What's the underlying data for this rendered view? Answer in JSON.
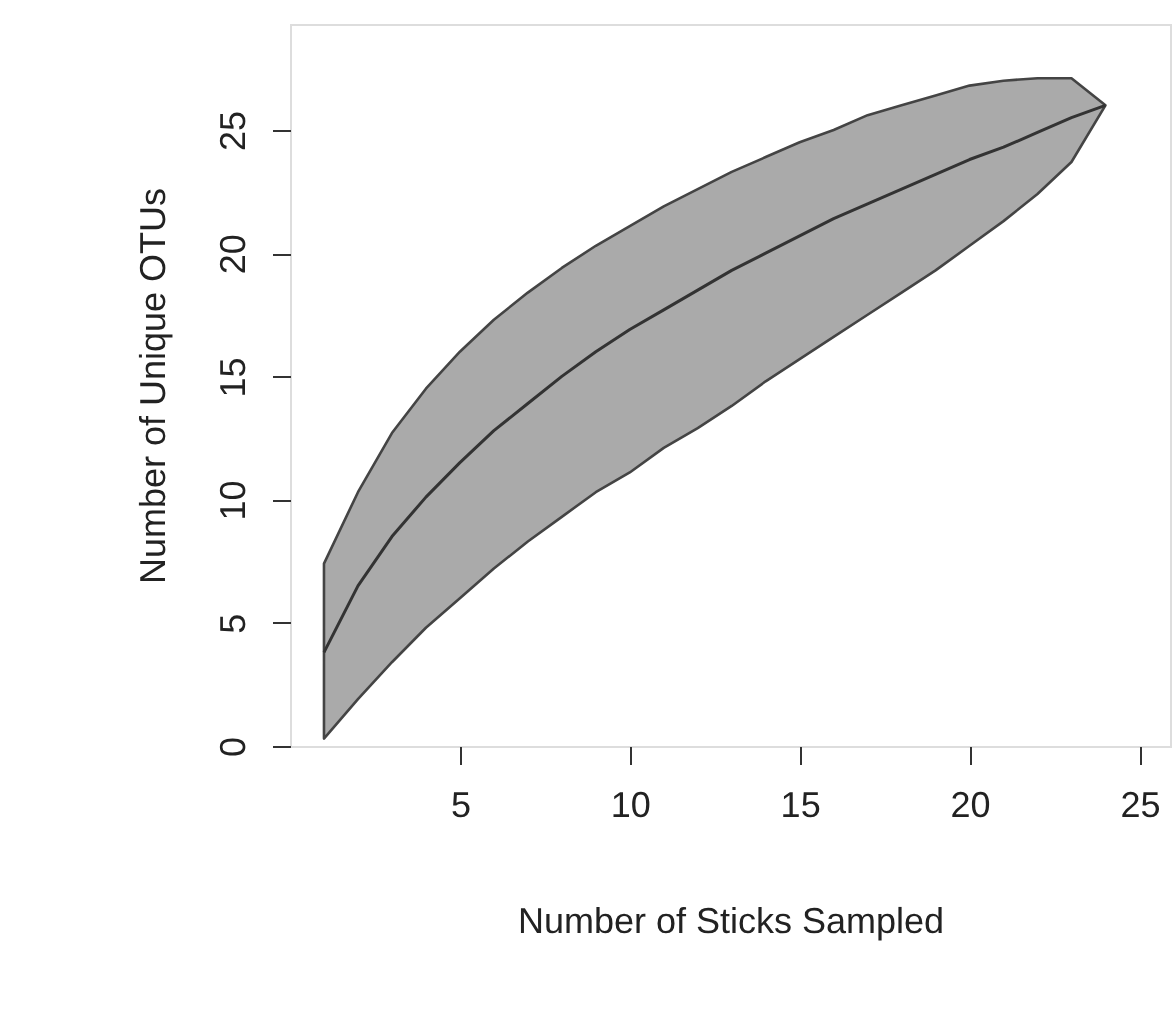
{
  "chart_data": {
    "type": "line",
    "xlabel": "Number of Sticks Sampled",
    "ylabel": "Number of Unique OTUs",
    "x": [
      1,
      2,
      3,
      4,
      5,
      6,
      7,
      8,
      9,
      10,
      11,
      12,
      13,
      14,
      15,
      16,
      17,
      18,
      19,
      20,
      21,
      22,
      23,
      24
    ],
    "series": [
      {
        "color": "#333333",
        "values": [
          3.8,
          6.5,
          8.5,
          10.1,
          11.5,
          12.8,
          13.9,
          15.0,
          16.0,
          16.9,
          17.7,
          18.5,
          19.3,
          20.0,
          20.7,
          21.4,
          22.0,
          22.6,
          23.2,
          23.8,
          24.3,
          24.9,
          25.5,
          26.0
        ],
        "lower": [
          0.3,
          1.9,
          3.4,
          4.8,
          6.0,
          7.2,
          8.3,
          9.3,
          10.3,
          11.1,
          12.1,
          12.9,
          13.8,
          14.8,
          15.7,
          16.6,
          17.5,
          18.4,
          19.3,
          20.3,
          21.3,
          22.4,
          23.7,
          26.0
        ],
        "upper": [
          7.4,
          10.3,
          12.7,
          14.5,
          16.0,
          17.3,
          18.4,
          19.4,
          20.3,
          21.1,
          21.9,
          22.6,
          23.3,
          23.9,
          24.5,
          25.0,
          25.6,
          26.0,
          26.4,
          26.8,
          27.0,
          27.1,
          27.1,
          26.0
        ]
      }
    ],
    "xlim": [
      0,
      25.9
    ],
    "ylim": [
      0,
      29.3
    ],
    "xticks": [
      5,
      10,
      15,
      20,
      25
    ],
    "yticks": [
      0,
      5,
      10,
      15,
      20,
      25
    ],
    "marker": "none",
    "line_style": "solid"
  }
}
